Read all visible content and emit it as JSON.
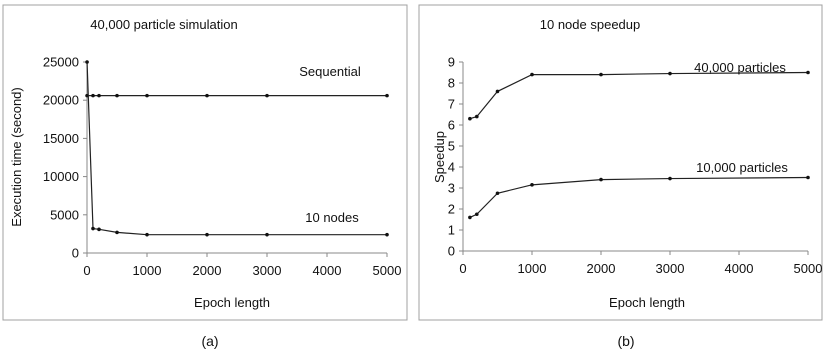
{
  "chart_data": [
    {
      "type": "line",
      "title": "40,000 particle simulation",
      "xlabel": "Epoch length",
      "ylabel": "Execution time (second)",
      "xlim": [
        0,
        5000
      ],
      "ylim": [
        0,
        25000
      ],
      "xticks": [
        0,
        1000,
        2000,
        3000,
        4000,
        5000
      ],
      "yticks": [
        0,
        5000,
        10000,
        15000,
        20000,
        25000
      ],
      "grid": false,
      "caption": "(a)",
      "series": [
        {
          "name": "Sequential",
          "x": [
            1,
            100,
            200,
            500,
            1000,
            2000,
            3000,
            5000
          ],
          "y": [
            20600,
            20600,
            20600,
            20600,
            20600,
            20600,
            20600,
            20600
          ]
        },
        {
          "name": "10 nodes",
          "x": [
            1,
            100,
            200,
            500,
            1000,
            2000,
            3000,
            5000
          ],
          "y": [
            25000,
            3200,
            3100,
            2700,
            2400,
            2400,
            2400,
            2400
          ]
        }
      ]
    },
    {
      "type": "line",
      "title": "10 node speedup",
      "xlabel": "Epoch length",
      "ylabel": "Speedup",
      "xlim": [
        0,
        5000
      ],
      "ylim": [
        0,
        9
      ],
      "xticks": [
        0,
        1000,
        2000,
        3000,
        4000,
        5000
      ],
      "yticks": [
        0,
        1,
        2,
        3,
        4,
        5,
        6,
        7,
        8,
        9
      ],
      "grid": false,
      "caption": "(b)",
      "series": [
        {
          "name": "40,000 particles",
          "x": [
            100,
            200,
            500,
            1000,
            2000,
            3000,
            5000
          ],
          "y": [
            6.3,
            6.4,
            7.6,
            8.4,
            8.4,
            8.45,
            8.5
          ]
        },
        {
          "name": "10,000 particles",
          "x": [
            100,
            200,
            500,
            1000,
            2000,
            3000,
            5000
          ],
          "y": [
            1.6,
            1.75,
            2.75,
            3.15,
            3.4,
            3.45,
            3.5
          ]
        }
      ]
    }
  ]
}
